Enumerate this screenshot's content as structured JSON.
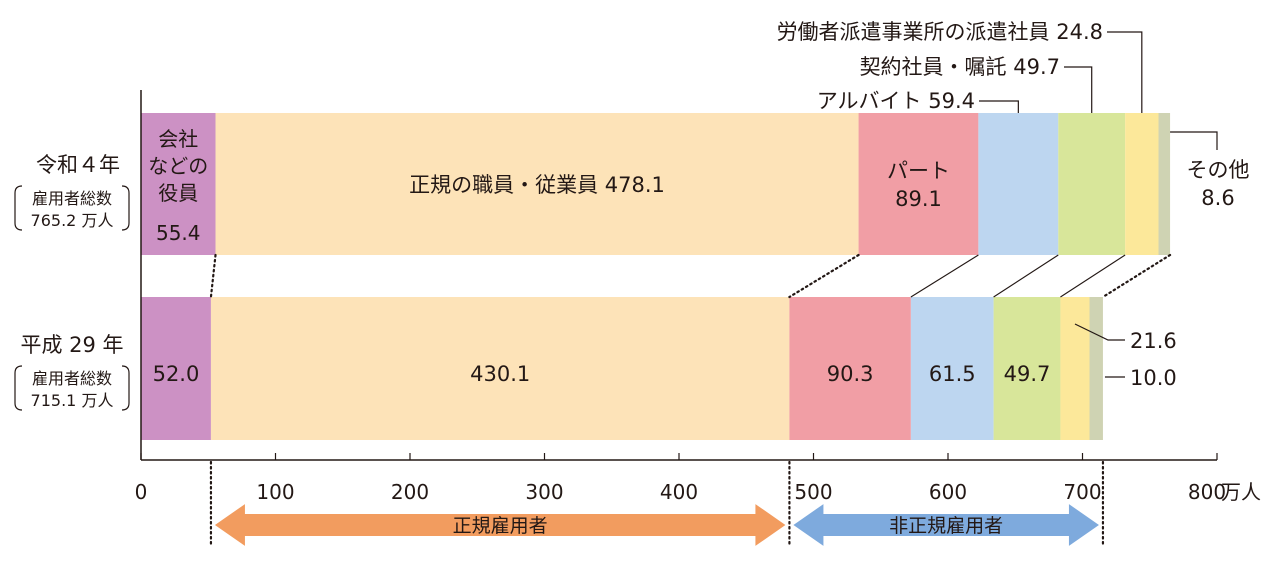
{
  "chart_data": {
    "type": "bar",
    "orientation": "horizontal",
    "stacked": true,
    "unit": "万人",
    "xlim": [
      0,
      800
    ],
    "xticks": [
      0,
      100,
      200,
      300,
      400,
      500,
      600,
      700,
      800
    ],
    "rows": [
      {
        "label": "令和４年",
        "total_label": "雇用者総数",
        "total_value": "765.2 万人"
      },
      {
        "label": "平成 29 年",
        "total_label": "雇用者総数",
        "total_value": "715.1 万人"
      }
    ],
    "series": [
      {
        "key": "officer",
        "color": "#cc91c4",
        "label_r4": "会社などの役員",
        "values": [
          55.4,
          52.0
        ]
      },
      {
        "key": "regular",
        "color": "#fde3b8",
        "label_r4": "正規の職員・従業員",
        "values": [
          478.1,
          430.1
        ]
      },
      {
        "key": "part",
        "color": "#f19ea5",
        "label_r4": "パート",
        "values": [
          89.1,
          90.3
        ]
      },
      {
        "key": "arubaito",
        "color": "#bdd6f0",
        "label_r4": "アルバイト",
        "values": [
          59.4,
          61.5
        ]
      },
      {
        "key": "contract",
        "color": "#d8e69a",
        "label_r4": "契約社員・嘱託",
        "values": [
          49.7,
          49.7
        ]
      },
      {
        "key": "dispatched",
        "color": "#fce89a",
        "label_r4": "労働者派遣事業所の派遣社員",
        "values": [
          24.8,
          21.6
        ]
      },
      {
        "key": "other",
        "color": "#cfd3b3",
        "label_r4": "その他",
        "values": [
          8.6,
          10.0
        ]
      }
    ],
    "bracket_labels": {
      "regular": "正規雇用者",
      "nonregular": "非正規雇用者",
      "regular_color": "#f29c5f",
      "nonregular_color": "#7eaadd"
    }
  }
}
